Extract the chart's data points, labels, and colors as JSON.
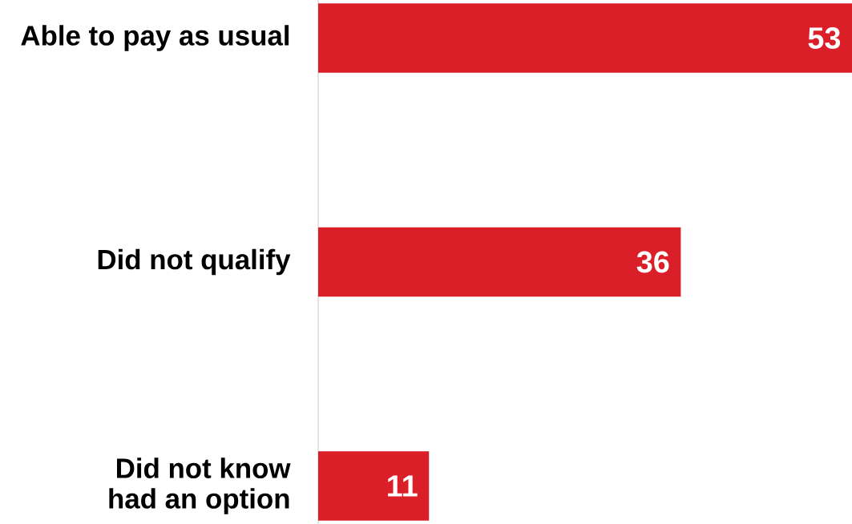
{
  "chart_data": {
    "type": "bar",
    "orientation": "horizontal",
    "categories": [
      "Able to pay as usual",
      "Did not qualify",
      "Did not know had an option"
    ],
    "values": [
      53,
      36,
      11
    ],
    "color": "#da1f28",
    "xlim": [
      0,
      53
    ],
    "data_labels": true,
    "tick_labels": "y",
    "grid": false
  }
}
